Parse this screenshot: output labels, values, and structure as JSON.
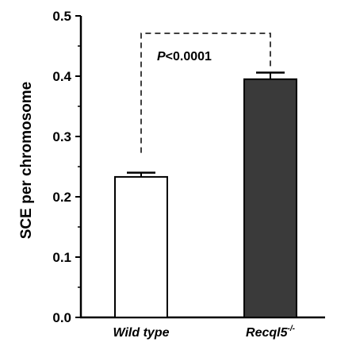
{
  "chart_data": {
    "type": "bar",
    "categories": [
      "Wild type",
      "Recql5"
    ],
    "category_superscripts": [
      "",
      "-/-"
    ],
    "values": [
      0.233,
      0.395
    ],
    "errors": [
      0.007,
      0.011
    ],
    "bar_colors": [
      "#ffffff",
      "#3a3a3a"
    ],
    "ylabel": "SCE per chromosome",
    "ylim": [
      0,
      0.5
    ],
    "yticks": [
      "0.0",
      "0.1",
      "0.2",
      "0.3",
      "0.4",
      "0.5"
    ],
    "grid": false,
    "annotation": {
      "p_symbol": "P",
      "p_text": "<0.0001"
    }
  }
}
